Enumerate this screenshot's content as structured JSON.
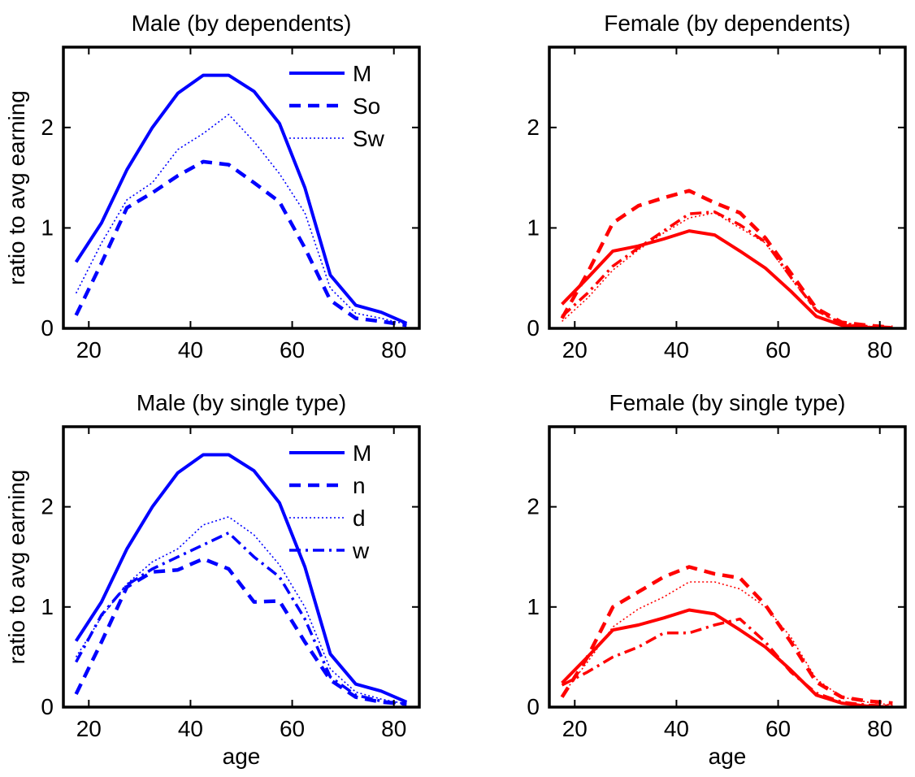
{
  "chart_data": [
    {
      "type": "line",
      "title": "Male (by dependents)",
      "xlabel": "",
      "ylabel": "ratio to avg earning",
      "xlim": [
        15,
        85
      ],
      "ylim": [
        0,
        2.8
      ],
      "xticks": [
        "20",
        "40",
        "60",
        "80"
      ],
      "yticks": [
        "0",
        "1",
        "2"
      ],
      "grid": false,
      "legend_position": "top-right",
      "color": "#0000ff",
      "x": [
        17.5,
        22.5,
        27.5,
        32.5,
        37.5,
        42.5,
        47.5,
        52.5,
        57.5,
        62.5,
        67.5,
        72.5,
        77.5,
        82.5
      ],
      "series": [
        {
          "name": "M",
          "style": "solid",
          "values": [
            0.66,
            1.05,
            1.58,
            2.0,
            2.34,
            2.52,
            2.52,
            2.36,
            2.04,
            1.4,
            0.53,
            0.23,
            0.16,
            0.05
          ]
        },
        {
          "name": "So",
          "style": "dashed",
          "values": [
            0.13,
            0.65,
            1.2,
            1.35,
            1.52,
            1.66,
            1.63,
            1.45,
            1.26,
            0.8,
            0.28,
            0.1,
            0.07,
            0.03
          ]
        },
        {
          "name": "Sw",
          "style": "dotted",
          "values": [
            0.35,
            0.85,
            1.28,
            1.45,
            1.78,
            1.94,
            2.13,
            1.86,
            1.54,
            1.15,
            0.4,
            0.15,
            0.1,
            0.04
          ]
        }
      ]
    },
    {
      "type": "line",
      "title": "Female (by dependents)",
      "xlabel": "",
      "ylabel": "",
      "xlim": [
        15,
        85
      ],
      "ylim": [
        0,
        2.8
      ],
      "xticks": [
        "20",
        "40",
        "60",
        "80"
      ],
      "yticks": [
        "0",
        "1",
        "2"
      ],
      "grid": false,
      "color": "#ff0000",
      "x": [
        17.5,
        22.5,
        27.5,
        32.5,
        37.5,
        42.5,
        47.5,
        52.5,
        57.5,
        62.5,
        67.5,
        72.5,
        77.5,
        82.5
      ],
      "series": [
        {
          "style": "solid",
          "values": [
            0.24,
            0.5,
            0.77,
            0.82,
            0.89,
            0.97,
            0.93,
            0.77,
            0.6,
            0.37,
            0.12,
            0.03,
            0.01,
            0.0
          ]
        },
        {
          "style": "dashed",
          "values": [
            0.1,
            0.55,
            1.05,
            1.22,
            1.3,
            1.37,
            1.25,
            1.15,
            0.9,
            0.55,
            0.2,
            0.06,
            0.03,
            0.01
          ]
        },
        {
          "style": "dotted",
          "values": [
            0.07,
            0.3,
            0.58,
            0.78,
            0.95,
            1.1,
            1.15,
            1.0,
            0.85,
            0.5,
            0.17,
            0.05,
            0.02,
            0.01
          ]
        },
        {
          "style": "dashdot",
          "values": [
            0.12,
            0.35,
            0.62,
            0.8,
            0.97,
            1.14,
            1.16,
            1.03,
            0.86,
            0.51,
            0.18,
            0.05,
            0.02,
            0.01
          ]
        }
      ]
    },
    {
      "type": "line",
      "title": "Male (by single type)",
      "xlabel": "age",
      "ylabel": "ratio to avg earning",
      "xlim": [
        15,
        85
      ],
      "ylim": [
        0,
        2.8
      ],
      "xticks": [
        "20",
        "40",
        "60",
        "80"
      ],
      "yticks": [
        "0",
        "1",
        "2"
      ],
      "grid": false,
      "legend_position": "top-right",
      "color": "#0000ff",
      "x": [
        17.5,
        22.5,
        27.5,
        32.5,
        37.5,
        42.5,
        47.5,
        52.5,
        57.5,
        62.5,
        67.5,
        72.5,
        77.5,
        82.5
      ],
      "series": [
        {
          "name": "M",
          "style": "solid",
          "values": [
            0.66,
            1.05,
            1.58,
            2.0,
            2.34,
            2.52,
            2.52,
            2.36,
            2.04,
            1.4,
            0.53,
            0.23,
            0.16,
            0.05
          ]
        },
        {
          "name": "n",
          "style": "dashed",
          "values": [
            0.13,
            0.65,
            1.2,
            1.35,
            1.37,
            1.48,
            1.38,
            1.05,
            1.06,
            0.65,
            0.27,
            0.1,
            0.05,
            0.03
          ]
        },
        {
          "name": "d",
          "style": "dotted",
          "values": [
            0.5,
            0.9,
            1.23,
            1.45,
            1.58,
            1.82,
            1.9,
            1.72,
            1.42,
            1.0,
            0.38,
            0.15,
            0.08,
            0.03
          ]
        },
        {
          "name": "w",
          "style": "dashdot",
          "values": [
            0.45,
            0.92,
            1.22,
            1.38,
            1.5,
            1.62,
            1.74,
            1.5,
            1.3,
            0.88,
            0.3,
            0.12,
            0.06,
            0.03
          ]
        }
      ]
    },
    {
      "type": "line",
      "title": "Female (by single type)",
      "xlabel": "age",
      "ylabel": "",
      "xlim": [
        15,
        85
      ],
      "ylim": [
        0,
        2.8
      ],
      "xticks": [
        "20",
        "40",
        "60",
        "80"
      ],
      "yticks": [
        "0",
        "1",
        "2"
      ],
      "grid": false,
      "color": "#ff0000",
      "x": [
        17.5,
        22.5,
        27.5,
        32.5,
        37.5,
        42.5,
        47.5,
        52.5,
        57.5,
        62.5,
        67.5,
        72.5,
        77.5,
        82.5
      ],
      "series": [
        {
          "style": "solid",
          "values": [
            0.24,
            0.5,
            0.77,
            0.82,
            0.89,
            0.97,
            0.93,
            0.77,
            0.6,
            0.37,
            0.12,
            0.04,
            0.01,
            0.0
          ]
        },
        {
          "style": "dashed",
          "values": [
            0.1,
            0.5,
            1.0,
            1.15,
            1.3,
            1.4,
            1.33,
            1.29,
            1.02,
            0.65,
            0.25,
            0.1,
            0.06,
            0.04
          ]
        },
        {
          "style": "dotted",
          "values": [
            0.12,
            0.45,
            0.8,
            0.98,
            1.1,
            1.25,
            1.25,
            1.18,
            1.0,
            0.7,
            0.28,
            0.1,
            0.05,
            0.02
          ]
        },
        {
          "style": "dashdot",
          "values": [
            0.22,
            0.35,
            0.5,
            0.6,
            0.74,
            0.74,
            0.82,
            0.88,
            0.65,
            0.35,
            0.14,
            0.05,
            0.02,
            0.01
          ]
        }
      ]
    }
  ]
}
